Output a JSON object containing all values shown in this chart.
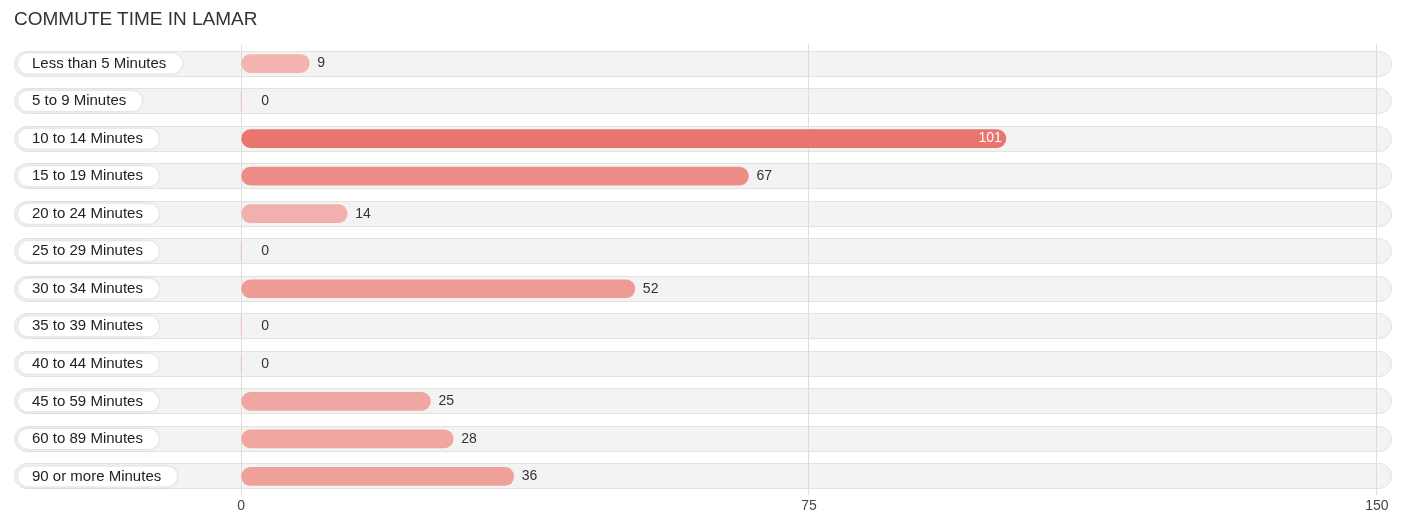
{
  "chart_data": {
    "type": "bar",
    "orientation": "horizontal",
    "title": "COMMUTE TIME IN LAMAR",
    "categories": [
      "Less than 5 Minutes",
      "5 to 9 Minutes",
      "10 to 14 Minutes",
      "15 to 19 Minutes",
      "20 to 24 Minutes",
      "25 to 29 Minutes",
      "30 to 34 Minutes",
      "35 to 39 Minutes",
      "40 to 44 Minutes",
      "45 to 59 Minutes",
      "60 to 89 Minutes",
      "90 or more Minutes"
    ],
    "values": [
      9,
      0,
      101,
      67,
      14,
      0,
      52,
      0,
      0,
      25,
      28,
      36
    ],
    "colors": [
      "#f3b4b0",
      "#f3b8b4",
      "#e8766e",
      "#ec8e87",
      "#f2b0ac",
      "#f3b8b4",
      "#ee9b95",
      "#f3b8b4",
      "#f3b8b4",
      "#f0a7a2",
      "#f0a5a0",
      "#efa09b"
    ],
    "xlim": [
      -30,
      152
    ],
    "xticks": [
      0,
      75,
      150
    ],
    "grid": "x",
    "data_labels": true
  }
}
